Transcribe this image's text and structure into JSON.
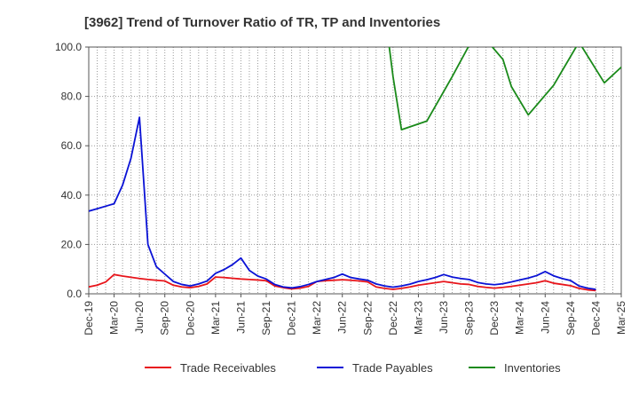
{
  "chart_data": {
    "type": "line",
    "title": "[3962]  Trend of Turnover Ratio of TR, TP and Inventories",
    "xlabel": "",
    "ylabel": "",
    "ylim": [
      0,
      100
    ],
    "yticks": [
      "0.0",
      "20.0",
      "40.0",
      "60.0",
      "80.0",
      "100.0"
    ],
    "xticks": [
      "Dec-19",
      "Mar-20",
      "Jun-20",
      "Sep-20",
      "Dec-20",
      "Mar-21",
      "Jun-21",
      "Sep-21",
      "Dec-21",
      "Mar-22",
      "Jun-22",
      "Sep-22",
      "Dec-22",
      "Mar-23",
      "Jun-23",
      "Sep-23",
      "Dec-23",
      "Mar-24",
      "Jun-24",
      "Sep-24",
      "Dec-24",
      "Mar-25"
    ],
    "x_start": "Dec-19",
    "x_end": "Mar-25",
    "grid": true,
    "legend_position": "bottom",
    "series": [
      {
        "name": "Trade Receivables",
        "color": "#e8151b",
        "points": [
          [
            "Dec-19",
            2.8
          ],
          [
            "Jan-20",
            3.5
          ],
          [
            "Feb-20",
            4.8
          ],
          [
            "Mar-20",
            7.8
          ],
          [
            "Apr-20",
            7.2
          ],
          [
            "May-20",
            6.7
          ],
          [
            "Jun-20",
            6.2
          ],
          [
            "Jul-20",
            5.8
          ],
          [
            "Aug-20",
            5.5
          ],
          [
            "Sep-20",
            5.2
          ],
          [
            "Oct-20",
            3.5
          ],
          [
            "Nov-20",
            2.8
          ],
          [
            "Dec-20",
            2.5
          ],
          [
            "Jan-21",
            3.0
          ],
          [
            "Feb-21",
            4.0
          ],
          [
            "Mar-21",
            6.8
          ],
          [
            "Apr-21",
            6.6
          ],
          [
            "May-21",
            6.3
          ],
          [
            "Jun-21",
            6.0
          ],
          [
            "Jul-21",
            5.8
          ],
          [
            "Aug-21",
            5.6
          ],
          [
            "Sep-21",
            5.3
          ],
          [
            "Oct-21",
            3.2
          ],
          [
            "Nov-21",
            2.5
          ],
          [
            "Dec-21",
            2.0
          ],
          [
            "Jan-22",
            2.3
          ],
          [
            "Feb-22",
            3.0
          ],
          [
            "Mar-22",
            5.0
          ],
          [
            "Apr-22",
            5.3
          ],
          [
            "May-22",
            5.5
          ],
          [
            "Jun-22",
            5.7
          ],
          [
            "Jul-22",
            5.5
          ],
          [
            "Aug-22",
            5.2
          ],
          [
            "Sep-22",
            4.8
          ],
          [
            "Oct-22",
            2.8
          ],
          [
            "Nov-22",
            2.2
          ],
          [
            "Dec-22",
            1.8
          ],
          [
            "Jan-23",
            2.2
          ],
          [
            "Feb-23",
            2.8
          ],
          [
            "Mar-23",
            3.5
          ],
          [
            "Apr-23",
            4.0
          ],
          [
            "May-23",
            4.5
          ],
          [
            "Jun-23",
            5.0
          ],
          [
            "Jul-23",
            4.5
          ],
          [
            "Aug-23",
            4.0
          ],
          [
            "Sep-23",
            3.8
          ],
          [
            "Oct-23",
            3.0
          ],
          [
            "Nov-23",
            2.6
          ],
          [
            "Dec-23",
            2.3
          ],
          [
            "Jan-24",
            2.6
          ],
          [
            "Feb-24",
            3.0
          ],
          [
            "Mar-24",
            3.5
          ],
          [
            "Apr-24",
            4.0
          ],
          [
            "May-24",
            4.5
          ],
          [
            "Jun-24",
            5.3
          ],
          [
            "Jul-24",
            4.3
          ],
          [
            "Aug-24",
            3.8
          ],
          [
            "Sep-24",
            3.3
          ],
          [
            "Oct-24",
            2.2
          ],
          [
            "Nov-24",
            1.6
          ],
          [
            "Dec-24",
            1.3
          ]
        ]
      },
      {
        "name": "Trade Payables",
        "color": "#0a12d6",
        "points": [
          [
            "Dec-19",
            33.5
          ],
          [
            "Jan-20",
            34.5
          ],
          [
            "Feb-20",
            35.5
          ],
          [
            "Mar-20",
            36.5
          ],
          [
            "Apr-20",
            44.0
          ],
          [
            "May-20",
            55.0
          ],
          [
            "Jun-20",
            71.5
          ],
          [
            "Jul-20",
            20.0
          ],
          [
            "Aug-20",
            11.0
          ],
          [
            "Sep-20",
            8.0
          ],
          [
            "Oct-20",
            5.0
          ],
          [
            "Nov-20",
            3.8
          ],
          [
            "Dec-20",
            3.2
          ],
          [
            "Jan-21",
            4.0
          ],
          [
            "Feb-21",
            5.2
          ],
          [
            "Mar-21",
            8.3
          ],
          [
            "Apr-21",
            9.8
          ],
          [
            "May-21",
            11.8
          ],
          [
            "Jun-21",
            14.5
          ],
          [
            "Jul-21",
            9.5
          ],
          [
            "Aug-21",
            7.2
          ],
          [
            "Sep-21",
            6.0
          ],
          [
            "Oct-21",
            3.8
          ],
          [
            "Nov-21",
            2.8
          ],
          [
            "Dec-21",
            2.4
          ],
          [
            "Jan-22",
            2.9
          ],
          [
            "Feb-22",
            3.8
          ],
          [
            "Mar-22",
            5.0
          ],
          [
            "Apr-22",
            5.8
          ],
          [
            "May-22",
            6.6
          ],
          [
            "Jun-22",
            8.0
          ],
          [
            "Jul-22",
            6.6
          ],
          [
            "Aug-22",
            6.0
          ],
          [
            "Sep-22",
            5.5
          ],
          [
            "Oct-22",
            4.0
          ],
          [
            "Nov-22",
            3.2
          ],
          [
            "Dec-22",
            2.7
          ],
          [
            "Jan-23",
            3.2
          ],
          [
            "Feb-23",
            3.9
          ],
          [
            "Mar-23",
            5.0
          ],
          [
            "Apr-23",
            5.7
          ],
          [
            "May-23",
            6.6
          ],
          [
            "Jun-23",
            7.8
          ],
          [
            "Jul-23",
            6.8
          ],
          [
            "Aug-23",
            6.2
          ],
          [
            "Sep-23",
            5.8
          ],
          [
            "Oct-23",
            4.6
          ],
          [
            "Nov-23",
            4.0
          ],
          [
            "Dec-23",
            3.7
          ],
          [
            "Jan-24",
            4.1
          ],
          [
            "Feb-24",
            4.8
          ],
          [
            "Mar-24",
            5.6
          ],
          [
            "Apr-24",
            6.4
          ],
          [
            "May-24",
            7.4
          ],
          [
            "Jun-24",
            9.0
          ],
          [
            "Jul-24",
            7.3
          ],
          [
            "Aug-24",
            6.2
          ],
          [
            "Sep-24",
            5.4
          ],
          [
            "Oct-24",
            3.2
          ],
          [
            "Nov-24",
            2.3
          ],
          [
            "Dec-24",
            1.8
          ]
        ]
      },
      {
        "name": "Inventories",
        "color": "#1a8a1a",
        "points": [
          [
            "Nov-22",
            115.0
          ],
          [
            "Dec-22",
            88.0
          ],
          [
            "Jan-23",
            66.5
          ],
          [
            "Apr-23",
            70.0
          ],
          [
            "Jul-23",
            88.0
          ],
          [
            "Oct-23",
            107.0
          ],
          [
            "Jan-24",
            95.0
          ],
          [
            "Feb-24",
            84.0
          ],
          [
            "Apr-24",
            72.5
          ],
          [
            "Jul-24",
            84.5
          ],
          [
            "Oct-24",
            102.0
          ],
          [
            "Jan-25",
            85.5
          ],
          [
            "Apr-25",
            95.0
          ]
        ]
      }
    ]
  }
}
